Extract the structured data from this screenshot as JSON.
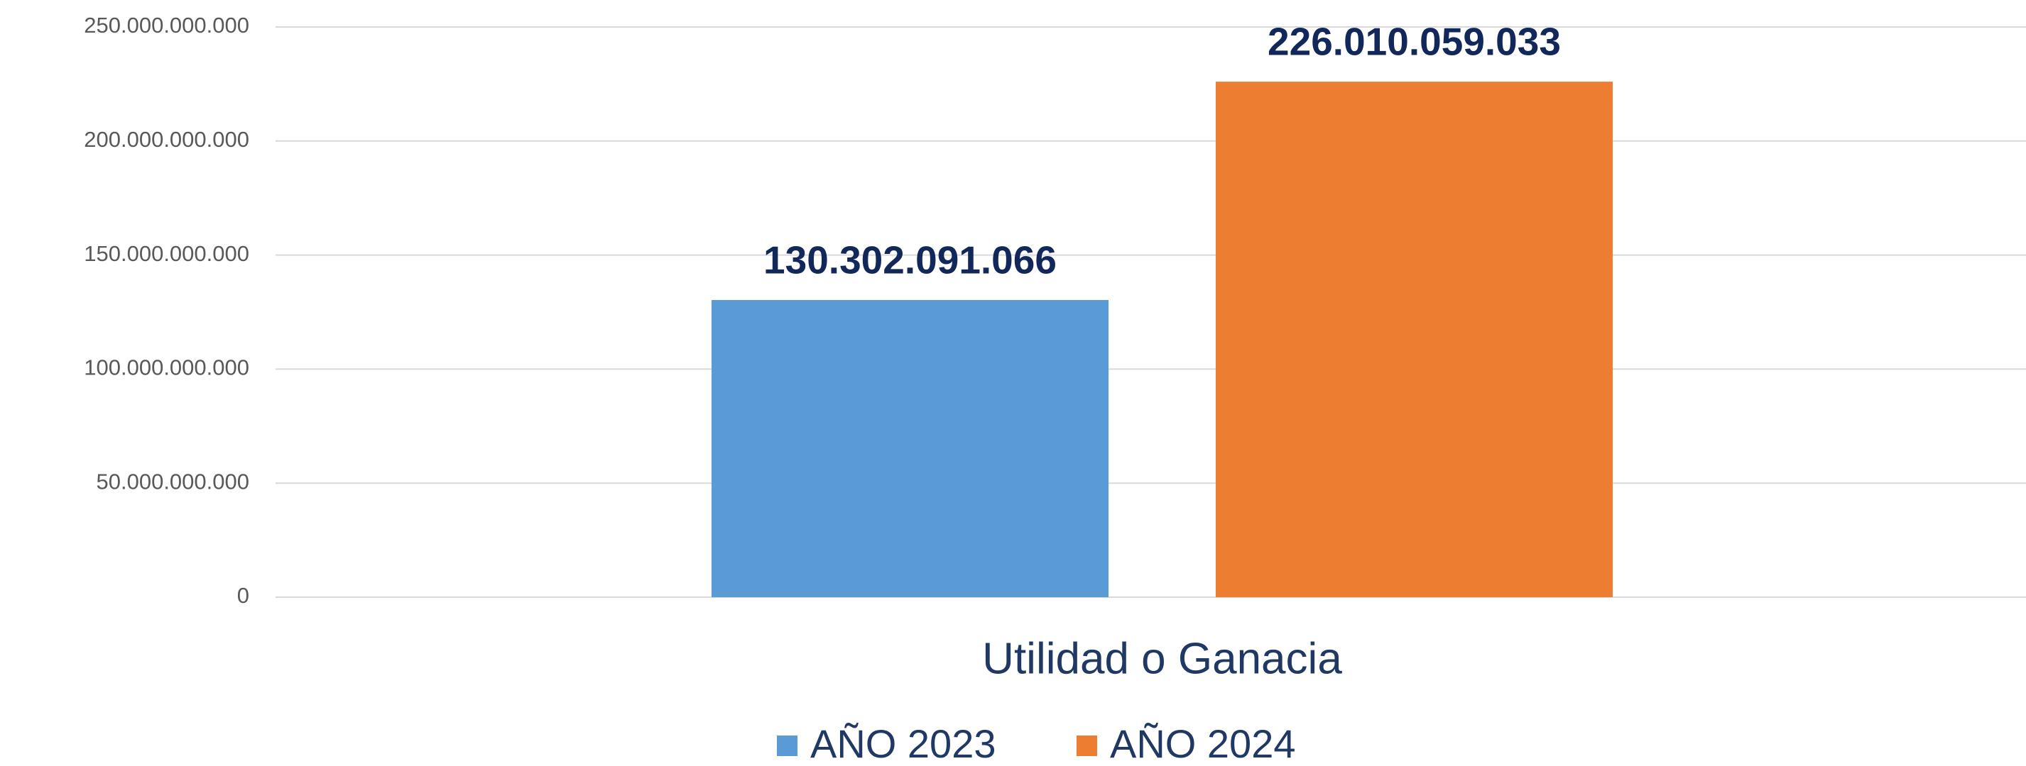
{
  "chart_data": {
    "type": "bar",
    "categories": [
      "Utilidad o Ganacia"
    ],
    "series": [
      {
        "name": "AÑO 2023",
        "color": "#5b9bd5",
        "values": [
          130302091066
        ],
        "value_labels": [
          "130.302.091.066"
        ]
      },
      {
        "name": "AÑO 2024",
        "color": "#ed7d31",
        "values": [
          226010059033
        ],
        "value_labels": [
          "226.010.059.033"
        ]
      }
    ],
    "ylim": [
      0,
      250000000000
    ],
    "yticks": [
      0,
      {
        "value": 50000000000,
        "label": "50.000.000.000"
      },
      {
        "value": 100000000000,
        "label": "100.000.000.000"
      },
      {
        "value": 150000000000,
        "label": "150.000.000.000"
      },
      {
        "value": 200000000000,
        "label": "200.000.000.000"
      },
      {
        "value": 250000000000,
        "label": "250.000.000.000"
      }
    ],
    "grid": true,
    "legend": "bottom"
  }
}
